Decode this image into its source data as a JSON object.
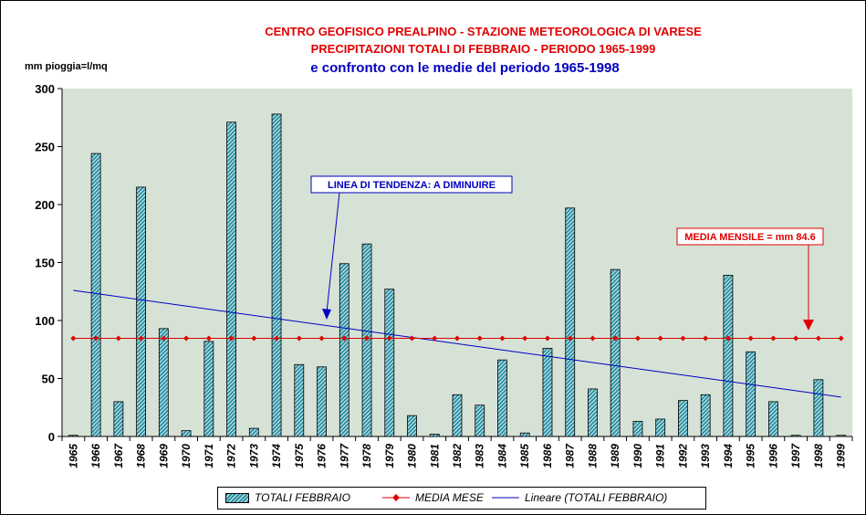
{
  "header": {
    "line1": "CENTRO GEOFISICO PREALPINO - STAZIONE METEOROLOGICA DI VARESE",
    "line2": "PRECIPITAZIONI TOTALI DI FEBBRAIO   -   PERIODO 1965-1999",
    "line3": "e confronto con le medie del periodo 1965-1998",
    "y_unit": "mm pioggia=l/mq"
  },
  "colors": {
    "plot_bg": "#d6e2d6",
    "bar_fill": "#2f8fa0",
    "mean_line": "#e00000",
    "trend_line": "#0000c0",
    "title_red": "#e00000",
    "title_blue": "#0000c0"
  },
  "annotations": {
    "trend_label": "LINEA DI TENDENZA: A DIMINUIRE",
    "mean_label": "MEDIA MENSILE = mm 84.6"
  },
  "legend": {
    "bars": "TOTALI FEBBRAIO",
    "mean": "MEDIA MESE",
    "trend": "Lineare (TOTALI FEBBRAIO)"
  },
  "chart_data": {
    "type": "bar",
    "categories": [
      "1965",
      "1966",
      "1967",
      "1968",
      "1969",
      "1970",
      "1971",
      "1972",
      "1973",
      "1974",
      "1975",
      "1976",
      "1977",
      "1978",
      "1979",
      "1980",
      "1981",
      "1982",
      "1983",
      "1984",
      "1985",
      "1986",
      "1987",
      "1988",
      "1989",
      "1990",
      "1991",
      "1992",
      "1993",
      "1994",
      "1995",
      "1996",
      "1997",
      "1998",
      "1999"
    ],
    "series": [
      {
        "name": "TOTALI FEBBRAIO",
        "type": "bar",
        "values": [
          1,
          244,
          30,
          215,
          93,
          5,
          82,
          271,
          7,
          278,
          62,
          60,
          149,
          166,
          127,
          18,
          2,
          36,
          27,
          66,
          3,
          76,
          197,
          41,
          144,
          13,
          15,
          31,
          36,
          139,
          73,
          30,
          1,
          49,
          1
        ]
      },
      {
        "name": "MEDIA MESE",
        "type": "line",
        "values": [
          84.6,
          84.6,
          84.6,
          84.6,
          84.6,
          84.6,
          84.6,
          84.6,
          84.6,
          84.6,
          84.6,
          84.6,
          84.6,
          84.6,
          84.6,
          84.6,
          84.6,
          84.6,
          84.6,
          84.6,
          84.6,
          84.6,
          84.6,
          84.6,
          84.6,
          84.6,
          84.6,
          84.6,
          84.6,
          84.6,
          84.6,
          84.6,
          84.6,
          84.6,
          84.6
        ]
      },
      {
        "name": "Lineare (TOTALI FEBBRAIO)",
        "type": "trend",
        "start": 126,
        "end": 34
      }
    ],
    "ylim": [
      0,
      300
    ],
    "yticks": [
      0,
      50,
      100,
      150,
      200,
      250,
      300
    ],
    "grid": false,
    "legend_position": "bottom"
  }
}
